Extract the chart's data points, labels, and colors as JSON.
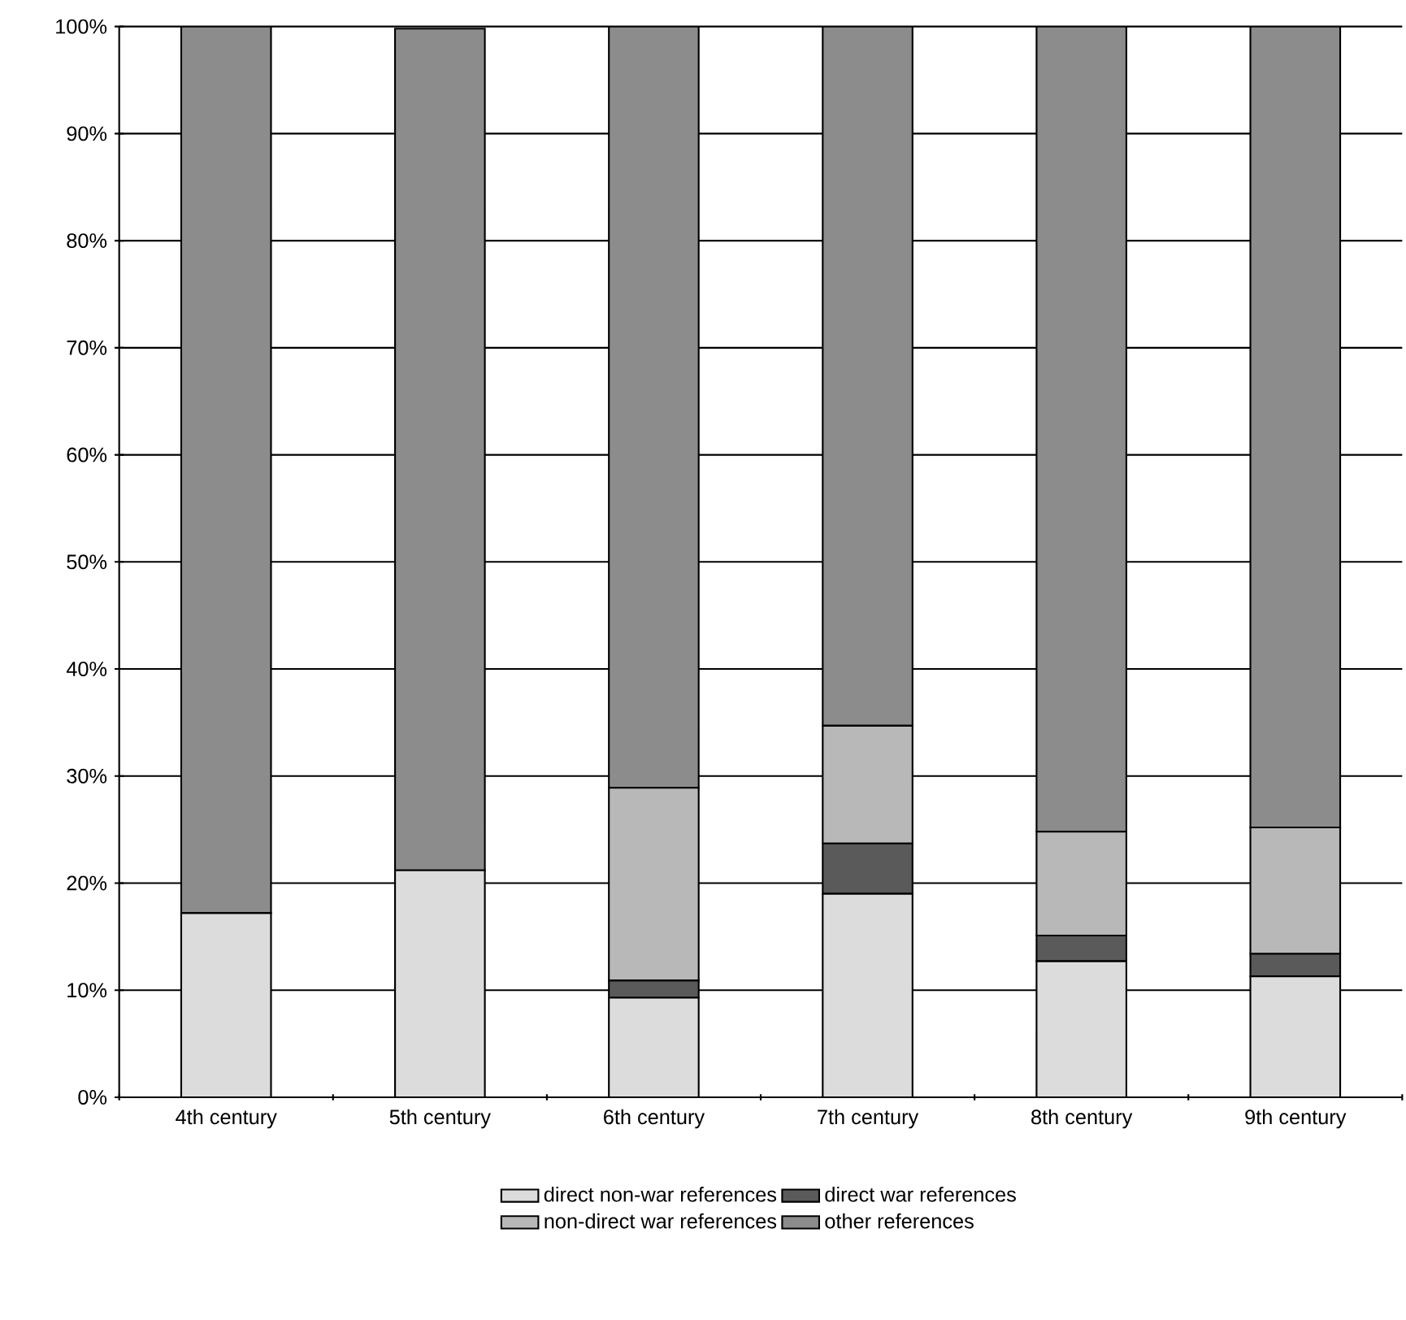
{
  "chart_data": {
    "type": "bar",
    "stacked": true,
    "grid": "y",
    "legend": "bottom",
    "categories": [
      "4th century",
      "5th century",
      "6th century",
      "7th century",
      "8th century",
      "9th century"
    ],
    "series": [
      {
        "name": "direct non-war references",
        "color": "#dcdcdc",
        "values": [
          17.2,
          21.2,
          9.3,
          19.0,
          12.7,
          11.3
        ]
      },
      {
        "name": "direct war references",
        "color": "#5a5a5a",
        "values": [
          0,
          0,
          1.6,
          4.7,
          2.4,
          2.1
        ]
      },
      {
        "name": "non-direct war references",
        "color": "#b8b8b8",
        "values": [
          0,
          0,
          18.0,
          11.0,
          9.7,
          11.8
        ]
      },
      {
        "name": "other references",
        "color": "#8c8c8c",
        "values": [
          82.8,
          78.6,
          71.1,
          65.3,
          75.2,
          74.8
        ]
      }
    ],
    "ylim": [
      0,
      100
    ],
    "yticks": [
      {
        "value": 0,
        "label": "0%"
      },
      {
        "value": 10,
        "label": "10%"
      },
      {
        "value": 20,
        "label": "20%"
      },
      {
        "value": 30,
        "label": "30%"
      },
      {
        "value": 40,
        "label": "40%"
      },
      {
        "value": 50,
        "label": "50%"
      },
      {
        "value": 60,
        "label": "60%"
      },
      {
        "value": 70,
        "label": "70%"
      },
      {
        "value": 80,
        "label": "80%"
      },
      {
        "value": 90,
        "label": "90%"
      },
      {
        "value": 100,
        "label": "100%"
      }
    ]
  }
}
